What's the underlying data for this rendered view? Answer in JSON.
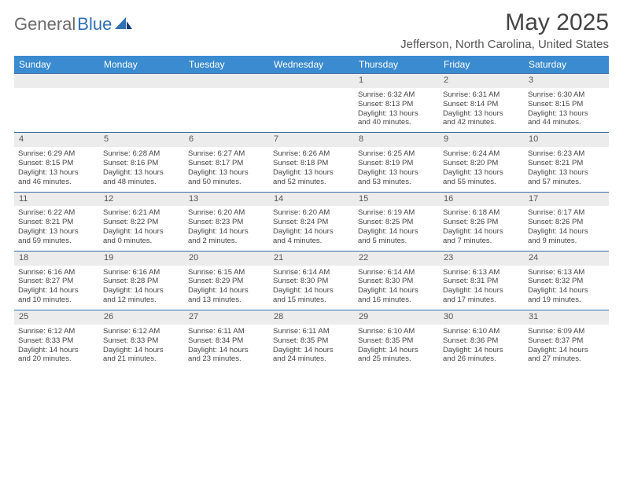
{
  "logo": {
    "general": "General",
    "blue": "Blue"
  },
  "title": "May 2025",
  "location": "Jefferson, North Carolina, United States",
  "colors": {
    "header_bg": "#3a8bd0",
    "header_text": "#ffffff",
    "daynum_bg": "#ececec",
    "rule": "#3a6fa5",
    "logo_blue": "#2f6fb3",
    "logo_gray": "#6b6b6b",
    "text": "#444444"
  },
  "weekdays": [
    "Sunday",
    "Monday",
    "Tuesday",
    "Wednesday",
    "Thursday",
    "Friday",
    "Saturday"
  ],
  "weeks": [
    {
      "nums": [
        "",
        "",
        "",
        "",
        "1",
        "2",
        "3"
      ],
      "cells": [
        null,
        null,
        null,
        null,
        {
          "rise": "Sunrise: 6:32 AM",
          "set": "Sunset: 8:13 PM",
          "day1": "Daylight: 13 hours",
          "day2": "and 40 minutes."
        },
        {
          "rise": "Sunrise: 6:31 AM",
          "set": "Sunset: 8:14 PM",
          "day1": "Daylight: 13 hours",
          "day2": "and 42 minutes."
        },
        {
          "rise": "Sunrise: 6:30 AM",
          "set": "Sunset: 8:15 PM",
          "day1": "Daylight: 13 hours",
          "day2": "and 44 minutes."
        }
      ]
    },
    {
      "nums": [
        "4",
        "5",
        "6",
        "7",
        "8",
        "9",
        "10"
      ],
      "cells": [
        {
          "rise": "Sunrise: 6:29 AM",
          "set": "Sunset: 8:15 PM",
          "day1": "Daylight: 13 hours",
          "day2": "and 46 minutes."
        },
        {
          "rise": "Sunrise: 6:28 AM",
          "set": "Sunset: 8:16 PM",
          "day1": "Daylight: 13 hours",
          "day2": "and 48 minutes."
        },
        {
          "rise": "Sunrise: 6:27 AM",
          "set": "Sunset: 8:17 PM",
          "day1": "Daylight: 13 hours",
          "day2": "and 50 minutes."
        },
        {
          "rise": "Sunrise: 6:26 AM",
          "set": "Sunset: 8:18 PM",
          "day1": "Daylight: 13 hours",
          "day2": "and 52 minutes."
        },
        {
          "rise": "Sunrise: 6:25 AM",
          "set": "Sunset: 8:19 PM",
          "day1": "Daylight: 13 hours",
          "day2": "and 53 minutes."
        },
        {
          "rise": "Sunrise: 6:24 AM",
          "set": "Sunset: 8:20 PM",
          "day1": "Daylight: 13 hours",
          "day2": "and 55 minutes."
        },
        {
          "rise": "Sunrise: 6:23 AM",
          "set": "Sunset: 8:21 PM",
          "day1": "Daylight: 13 hours",
          "day2": "and 57 minutes."
        }
      ]
    },
    {
      "nums": [
        "11",
        "12",
        "13",
        "14",
        "15",
        "16",
        "17"
      ],
      "cells": [
        {
          "rise": "Sunrise: 6:22 AM",
          "set": "Sunset: 8:21 PM",
          "day1": "Daylight: 13 hours",
          "day2": "and 59 minutes."
        },
        {
          "rise": "Sunrise: 6:21 AM",
          "set": "Sunset: 8:22 PM",
          "day1": "Daylight: 14 hours",
          "day2": "and 0 minutes."
        },
        {
          "rise": "Sunrise: 6:20 AM",
          "set": "Sunset: 8:23 PM",
          "day1": "Daylight: 14 hours",
          "day2": "and 2 minutes."
        },
        {
          "rise": "Sunrise: 6:20 AM",
          "set": "Sunset: 8:24 PM",
          "day1": "Daylight: 14 hours",
          "day2": "and 4 minutes."
        },
        {
          "rise": "Sunrise: 6:19 AM",
          "set": "Sunset: 8:25 PM",
          "day1": "Daylight: 14 hours",
          "day2": "and 5 minutes."
        },
        {
          "rise": "Sunrise: 6:18 AM",
          "set": "Sunset: 8:26 PM",
          "day1": "Daylight: 14 hours",
          "day2": "and 7 minutes."
        },
        {
          "rise": "Sunrise: 6:17 AM",
          "set": "Sunset: 8:26 PM",
          "day1": "Daylight: 14 hours",
          "day2": "and 9 minutes."
        }
      ]
    },
    {
      "nums": [
        "18",
        "19",
        "20",
        "21",
        "22",
        "23",
        "24"
      ],
      "cells": [
        {
          "rise": "Sunrise: 6:16 AM",
          "set": "Sunset: 8:27 PM",
          "day1": "Daylight: 14 hours",
          "day2": "and 10 minutes."
        },
        {
          "rise": "Sunrise: 6:16 AM",
          "set": "Sunset: 8:28 PM",
          "day1": "Daylight: 14 hours",
          "day2": "and 12 minutes."
        },
        {
          "rise": "Sunrise: 6:15 AM",
          "set": "Sunset: 8:29 PM",
          "day1": "Daylight: 14 hours",
          "day2": "and 13 minutes."
        },
        {
          "rise": "Sunrise: 6:14 AM",
          "set": "Sunset: 8:30 PM",
          "day1": "Daylight: 14 hours",
          "day2": "and 15 minutes."
        },
        {
          "rise": "Sunrise: 6:14 AM",
          "set": "Sunset: 8:30 PM",
          "day1": "Daylight: 14 hours",
          "day2": "and 16 minutes."
        },
        {
          "rise": "Sunrise: 6:13 AM",
          "set": "Sunset: 8:31 PM",
          "day1": "Daylight: 14 hours",
          "day2": "and 17 minutes."
        },
        {
          "rise": "Sunrise: 6:13 AM",
          "set": "Sunset: 8:32 PM",
          "day1": "Daylight: 14 hours",
          "day2": "and 19 minutes."
        }
      ]
    },
    {
      "nums": [
        "25",
        "26",
        "27",
        "28",
        "29",
        "30",
        "31"
      ],
      "cells": [
        {
          "rise": "Sunrise: 6:12 AM",
          "set": "Sunset: 8:33 PM",
          "day1": "Daylight: 14 hours",
          "day2": "and 20 minutes."
        },
        {
          "rise": "Sunrise: 6:12 AM",
          "set": "Sunset: 8:33 PM",
          "day1": "Daylight: 14 hours",
          "day2": "and 21 minutes."
        },
        {
          "rise": "Sunrise: 6:11 AM",
          "set": "Sunset: 8:34 PM",
          "day1": "Daylight: 14 hours",
          "day2": "and 23 minutes."
        },
        {
          "rise": "Sunrise: 6:11 AM",
          "set": "Sunset: 8:35 PM",
          "day1": "Daylight: 14 hours",
          "day2": "and 24 minutes."
        },
        {
          "rise": "Sunrise: 6:10 AM",
          "set": "Sunset: 8:35 PM",
          "day1": "Daylight: 14 hours",
          "day2": "and 25 minutes."
        },
        {
          "rise": "Sunrise: 6:10 AM",
          "set": "Sunset: 8:36 PM",
          "day1": "Daylight: 14 hours",
          "day2": "and 26 minutes."
        },
        {
          "rise": "Sunrise: 6:09 AM",
          "set": "Sunset: 8:37 PM",
          "day1": "Daylight: 14 hours",
          "day2": "and 27 minutes."
        }
      ]
    }
  ]
}
